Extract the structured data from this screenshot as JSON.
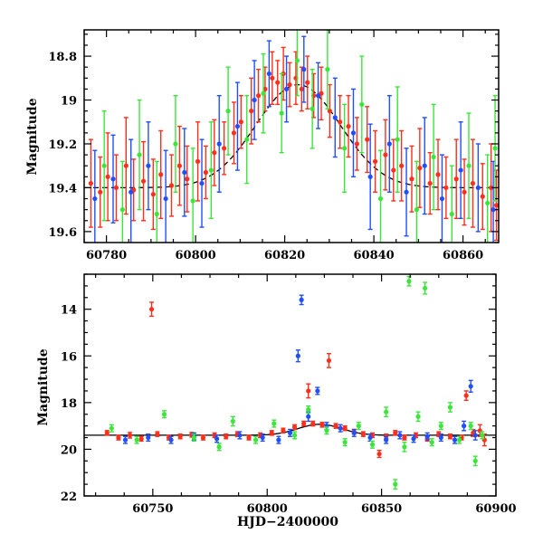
{
  "chart_data": [
    {
      "type": "scatter",
      "title": "",
      "xlabel": "",
      "ylabel": "Magnitude",
      "xlim": [
        60775,
        60868
      ],
      "ylim": [
        19.65,
        18.68
      ],
      "y_inverted": true,
      "grid": false,
      "xticks": [
        60780,
        60800,
        60820,
        60840,
        60860
      ],
      "yticks": [
        18.8,
        19,
        19.2,
        19.4,
        19.6
      ],
      "model_curve": {
        "color": "#000000",
        "style": "dashed",
        "baseline": 19.4,
        "peak_mag": 18.93,
        "peak_x": 60823,
        "width": 9.5,
        "x_start": 60775,
        "x_end": 60868
      },
      "series": [
        {
          "color": "#ff2f1c",
          "points": [
            [
              60776.5,
              19.38,
              0.2
            ],
            [
              60778.6,
              19.42,
              0.16
            ],
            [
              60780.3,
              19.35,
              0.2
            ],
            [
              60782.2,
              19.4,
              0.15
            ],
            [
              60784.4,
              19.3,
              0.22
            ],
            [
              60786.1,
              19.41,
              0.14
            ],
            [
              60788.3,
              19.37,
              0.18
            ],
            [
              60790.5,
              19.43,
              0.16
            ],
            [
              60792.2,
              19.34,
              0.2
            ],
            [
              60794.6,
              19.39,
              0.14
            ],
            [
              60796.4,
              19.3,
              0.18
            ],
            [
              60798.1,
              19.36,
              0.15
            ],
            [
              60800.5,
              19.28,
              0.18
            ],
            [
              60802.3,
              19.33,
              0.12
            ],
            [
              60804.2,
              19.24,
              0.15
            ],
            [
              60806.4,
              19.22,
              0.12
            ],
            [
              60808.6,
              19.15,
              0.14
            ],
            [
              60810.2,
              19.1,
              0.12
            ],
            [
              60812.5,
              19.05,
              0.15
            ],
            [
              60814.1,
              18.98,
              0.12
            ],
            [
              60815.6,
              18.95,
              0.1
            ],
            [
              60817.2,
              18.9,
              0.12
            ],
            [
              60818.4,
              18.92,
              0.1
            ],
            [
              60819.7,
              18.88,
              0.12
            ],
            [
              60821.1,
              18.93,
              0.1
            ],
            [
              60822.5,
              18.9,
              0.12
            ],
            [
              60823.8,
              18.95,
              0.1
            ],
            [
              60825.1,
              18.92,
              0.12
            ],
            [
              60826.5,
              18.98,
              0.1
            ],
            [
              60828.2,
              18.97,
              0.12
            ],
            [
              60830.1,
              19.05,
              0.12
            ],
            [
              60832.4,
              19.1,
              0.12
            ],
            [
              60834.3,
              19.12,
              0.14
            ],
            [
              60836.2,
              19.2,
              0.12
            ],
            [
              60838.5,
              19.18,
              0.15
            ],
            [
              60840.3,
              19.28,
              0.14
            ],
            [
              60842.6,
              19.25,
              0.16
            ],
            [
              60844.4,
              19.32,
              0.14
            ],
            [
              60846.2,
              19.3,
              0.16
            ],
            [
              60848.5,
              19.36,
              0.15
            ],
            [
              60850.3,
              19.31,
              0.18
            ],
            [
              60852.6,
              19.38,
              0.14
            ],
            [
              60854.4,
              19.34,
              0.16
            ],
            [
              60856.2,
              19.4,
              0.14
            ],
            [
              60858.5,
              19.36,
              0.18
            ],
            [
              60860.3,
              19.42,
              0.15
            ],
            [
              60862.2,
              19.38,
              0.2
            ],
            [
              60864.4,
              19.44,
              0.15
            ],
            [
              60866.3,
              19.4,
              0.2
            ],
            [
              60867.5,
              19.48,
              0.16
            ]
          ]
        },
        {
          "color": "#1f4fff",
          "points": [
            [
              60777.4,
              19.45,
              0.22
            ],
            [
              60781.5,
              19.36,
              0.2
            ],
            [
              60785.5,
              19.42,
              0.24
            ],
            [
              60789.4,
              19.3,
              0.2
            ],
            [
              60793.3,
              19.45,
              0.22
            ],
            [
              60797.5,
              19.33,
              0.2
            ],
            [
              60801.4,
              19.38,
              0.2
            ],
            [
              60805.3,
              19.2,
              0.22
            ],
            [
              60809.4,
              19.12,
              0.2
            ],
            [
              60813.2,
              19.0,
              0.18
            ],
            [
              60816.5,
              18.88,
              0.15
            ],
            [
              60820.4,
              18.95,
              0.15
            ],
            [
              60824.3,
              18.86,
              0.15
            ],
            [
              60827.5,
              18.98,
              0.15
            ],
            [
              60831.3,
              19.08,
              0.18
            ],
            [
              60835.4,
              19.15,
              0.2
            ],
            [
              60839.2,
              19.35,
              0.24
            ],
            [
              60843.5,
              19.2,
              0.22
            ],
            [
              60847.3,
              19.42,
              0.2
            ],
            [
              60851.4,
              19.3,
              0.22
            ],
            [
              60855.3,
              19.45,
              0.2
            ],
            [
              60859.5,
              19.32,
              0.22
            ],
            [
              60863.4,
              19.4,
              0.2
            ],
            [
              60866.8,
              19.5,
              0.22
            ]
          ]
        },
        {
          "color": "#3be63b",
          "points": [
            [
              60779.5,
              19.3,
              0.25
            ],
            [
              60783.6,
              19.5,
              0.22
            ],
            [
              60787.4,
              19.25,
              0.25
            ],
            [
              60791.3,
              19.52,
              0.24
            ],
            [
              60795.5,
              19.2,
              0.22
            ],
            [
              60799.4,
              19.46,
              0.24
            ],
            [
              60803.5,
              19.32,
              0.22
            ],
            [
              60807.3,
              19.05,
              0.2
            ],
            [
              60811.5,
              19.18,
              0.2
            ],
            [
              60815.2,
              18.97,
              0.18
            ],
            [
              60819.3,
              19.06,
              0.18
            ],
            [
              60822.8,
              18.82,
              0.16
            ],
            [
              60826.2,
              19.04,
              0.18
            ],
            [
              60829.6,
              18.86,
              0.18
            ],
            [
              60833.4,
              19.22,
              0.2
            ],
            [
              60837.3,
              19.02,
              0.22
            ],
            [
              60841.5,
              19.45,
              0.22
            ],
            [
              60845.3,
              19.18,
              0.24
            ],
            [
              60849.6,
              19.5,
              0.22
            ],
            [
              60853.4,
              19.26,
              0.24
            ],
            [
              60857.5,
              19.52,
              0.22
            ],
            [
              60861.3,
              19.3,
              0.24
            ],
            [
              60865.5,
              19.47,
              0.22
            ],
            [
              60867.2,
              19.22,
              0.24
            ]
          ]
        }
      ]
    },
    {
      "type": "scatter",
      "title": "",
      "xlabel": "HJD−2400000",
      "ylabel": "Magnitude",
      "xlim": [
        60720,
        60900
      ],
      "ylim": [
        22,
        12.5
      ],
      "y_inverted": true,
      "grid": false,
      "xticks": [
        60750,
        60800,
        60850,
        60900
      ],
      "yticks": [
        14,
        16,
        18,
        20,
        22
      ],
      "model_curve": {
        "color": "#000000",
        "style": "solid",
        "baseline": 19.4,
        "peak_mag": 18.93,
        "peak_x": 60823,
        "width": 9.5,
        "x_start": 60720,
        "x_end": 60900
      },
      "series": [
        {
          "color": "#ff2f1c",
          "points": [
            [
              60730,
              19.3,
              0.1
            ],
            [
              60735,
              19.5,
              0.1
            ],
            [
              60740,
              19.4,
              0.12
            ],
            [
              60745,
              19.55,
              0.1
            ],
            [
              60749.5,
              14.0,
              0.3
            ],
            [
              60752,
              19.35,
              0.1
            ],
            [
              60757,
              19.5,
              0.1
            ],
            [
              60762,
              19.45,
              0.1
            ],
            [
              60767,
              19.38,
              0.1
            ],
            [
              60772,
              19.5,
              0.1
            ],
            [
              60777,
              19.4,
              0.1
            ],
            [
              60782,
              19.45,
              0.1
            ],
            [
              60787,
              19.35,
              0.1
            ],
            [
              60792,
              19.5,
              0.1
            ],
            [
              60797,
              19.4,
              0.1
            ],
            [
              60802,
              19.3,
              0.1
            ],
            [
              60807,
              19.2,
              0.1
            ],
            [
              60812,
              19.05,
              0.1
            ],
            [
              60816,
              18.9,
              0.1
            ],
            [
              60818,
              17.5,
              0.3
            ],
            [
              60820,
              18.9,
              0.1
            ],
            [
              60824,
              18.95,
              0.1
            ],
            [
              60827,
              16.2,
              0.3
            ],
            [
              60830,
              19.0,
              0.1
            ],
            [
              60834,
              19.1,
              0.1
            ],
            [
              60838,
              19.25,
              0.1
            ],
            [
              60842,
              19.35,
              0.1
            ],
            [
              60846,
              19.4,
              0.1
            ],
            [
              60849,
              20.2,
              0.15
            ],
            [
              60852,
              19.45,
              0.1
            ],
            [
              60856,
              19.3,
              0.1
            ],
            [
              60860,
              19.5,
              0.1
            ],
            [
              60865,
              19.4,
              0.1
            ],
            [
              60870,
              19.55,
              0.1
            ],
            [
              60875,
              19.35,
              0.1
            ],
            [
              60880,
              19.45,
              0.1
            ],
            [
              60885,
              19.5,
              0.1
            ],
            [
              60887,
              17.7,
              0.2
            ],
            [
              60890,
              19.3,
              0.15
            ],
            [
              60893,
              19.2,
              0.25
            ],
            [
              60895,
              19.6,
              0.25
            ]
          ]
        },
        {
          "color": "#1f4fff",
          "points": [
            [
              60738,
              19.6,
              0.15
            ],
            [
              60748,
              19.5,
              0.15
            ],
            [
              60758,
              19.6,
              0.15
            ],
            [
              60768,
              19.45,
              0.15
            ],
            [
              60778,
              19.55,
              0.15
            ],
            [
              60788,
              19.4,
              0.15
            ],
            [
              60798,
              19.5,
              0.15
            ],
            [
              60805,
              19.6,
              0.15
            ],
            [
              60810,
              19.3,
              0.15
            ],
            [
              60813.5,
              16.0,
              0.25
            ],
            [
              60815,
              13.6,
              0.2
            ],
            [
              60818,
              18.6,
              0.2
            ],
            [
              60822,
              17.5,
              0.15
            ],
            [
              60826,
              19.0,
              0.15
            ],
            [
              60832,
              19.1,
              0.15
            ],
            [
              60838,
              19.3,
              0.15
            ],
            [
              60845,
              19.5,
              0.15
            ],
            [
              60852,
              19.6,
              0.15
            ],
            [
              60858,
              19.4,
              0.15
            ],
            [
              60864,
              19.55,
              0.15
            ],
            [
              60870,
              19.45,
              0.15
            ],
            [
              60876,
              19.5,
              0.15
            ],
            [
              60882,
              19.6,
              0.15
            ],
            [
              60886,
              19.0,
              0.2
            ],
            [
              60889,
              17.3,
              0.25
            ],
            [
              60891,
              19.4,
              0.2
            ]
          ]
        },
        {
          "color": "#3be63b",
          "points": [
            [
              60732,
              19.1,
              0.15
            ],
            [
              60743,
              19.6,
              0.15
            ],
            [
              60755,
              18.5,
              0.15
            ],
            [
              60768,
              19.5,
              0.15
            ],
            [
              60779,
              19.9,
              0.15
            ],
            [
              60785,
              18.8,
              0.2
            ],
            [
              60795,
              19.6,
              0.15
            ],
            [
              60803,
              18.9,
              0.15
            ],
            [
              60812,
              19.4,
              0.15
            ],
            [
              60818,
              18.3,
              0.15
            ],
            [
              60826,
              19.2,
              0.15
            ],
            [
              60834,
              19.7,
              0.15
            ],
            [
              60840,
              19.0,
              0.15
            ],
            [
              60846,
              19.8,
              0.15
            ],
            [
              60852,
              18.4,
              0.2
            ],
            [
              60856,
              21.5,
              0.2
            ],
            [
              60860,
              19.9,
              0.2
            ],
            [
              60862,
              12.8,
              0.2
            ],
            [
              60866,
              18.6,
              0.2
            ],
            [
              60869,
              13.1,
              0.25
            ],
            [
              60872,
              19.7,
              0.15
            ],
            [
              60876,
              19.0,
              0.15
            ],
            [
              60880,
              18.2,
              0.2
            ],
            [
              60884,
              19.6,
              0.15
            ],
            [
              60889,
              19.0,
              0.15
            ],
            [
              60891,
              20.5,
              0.2
            ],
            [
              60894,
              19.4,
              0.15
            ]
          ]
        }
      ]
    }
  ]
}
